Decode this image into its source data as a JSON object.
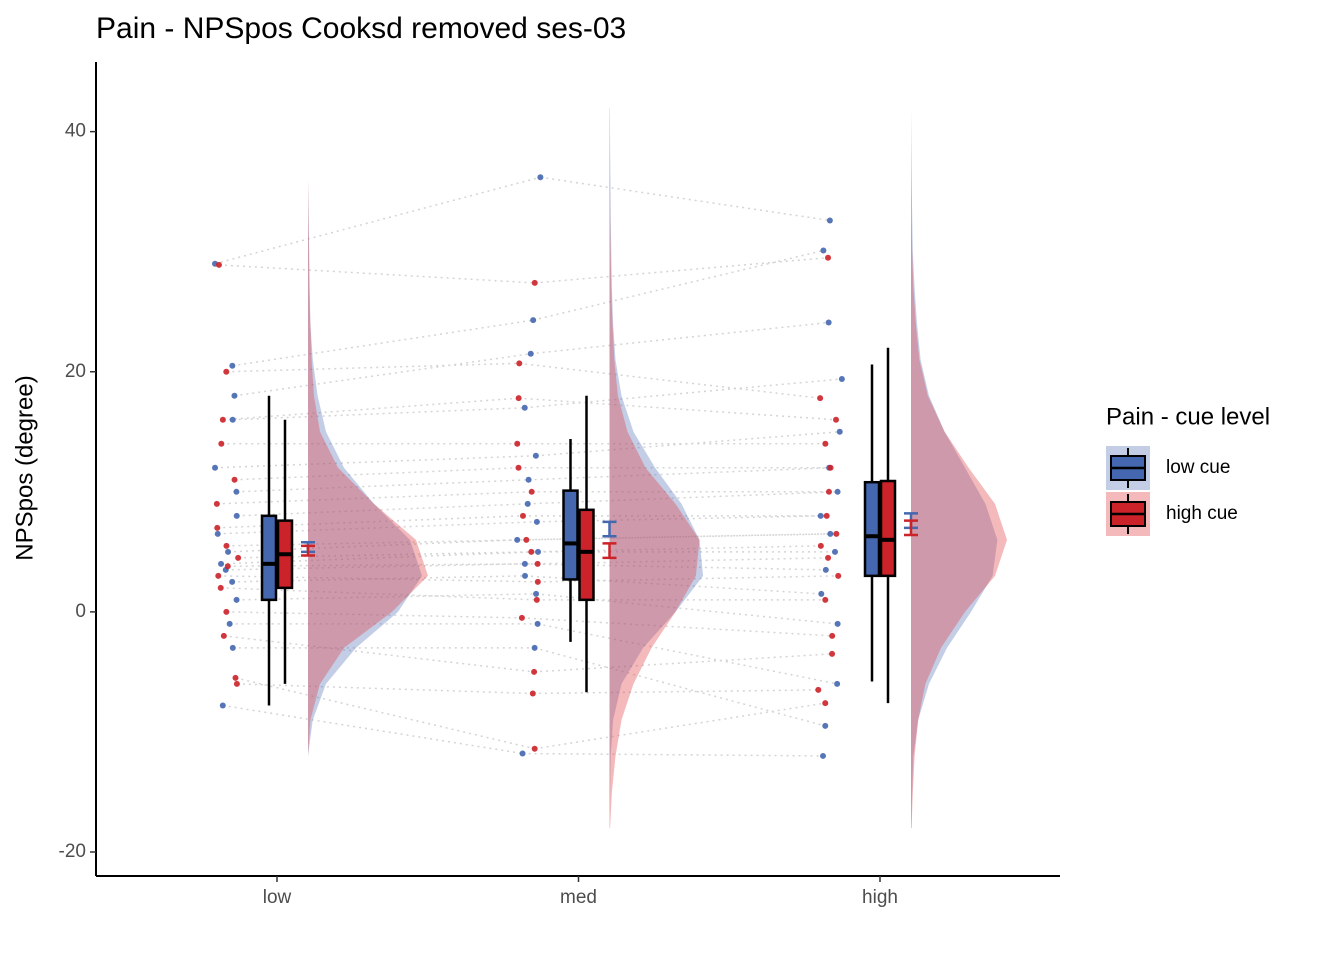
{
  "chart_data": {
    "type": "raincloud",
    "title": "Pain  - NPSpos Cooksd removed  ses-03",
    "y_label": "NPSpos (degree)",
    "legend_title": "Pain  - cue level",
    "legend_position": "right",
    "categories": [
      "low",
      "med",
      "high"
    ],
    "ylim": [
      -22,
      45.8
    ],
    "yticks": [
      -20,
      0,
      20,
      40
    ],
    "density_grid": [
      -18,
      -15,
      -12,
      -9,
      -6,
      -3,
      0,
      3,
      6,
      9,
      12,
      15,
      18,
      21,
      24,
      27,
      30,
      33,
      36,
      39,
      42
    ],
    "series": [
      {
        "name": "low cue",
        "color": "#4467b0",
        "points": [
          [
            29,
            20.5,
            18,
            16,
            12,
            10,
            8,
            6.5,
            5,
            4,
            3.5,
            2.5,
            1,
            -1,
            -3,
            -7.8
          ],
          [
            36.2,
            24.3,
            21.5,
            17,
            13,
            11,
            9,
            7.5,
            6,
            5,
            4,
            3,
            1.5,
            -1,
            -3,
            -11.8
          ],
          [
            32.6,
            30.1,
            24.1,
            19.4,
            15,
            12,
            10,
            8,
            6.5,
            5,
            3.5,
            1.5,
            -1,
            -6,
            -9.5,
            -12
          ]
        ],
        "box": [
          [
            -7.8,
            1,
            4,
            8,
            18
          ],
          [
            -2.5,
            2.7,
            5.7,
            10.1,
            14.4
          ],
          [
            -5.8,
            3,
            6.3,
            10.8,
            20.6
          ]
        ],
        "mean": [
          5.4,
          6.9,
          7.6
        ],
        "error": [
          0.4,
          0.6,
          0.6
        ],
        "density": [
          [
            0,
            0,
            0,
            0.04,
            0.15,
            0.4,
            0.75,
            0.95,
            0.85,
            0.55,
            0.3,
            0.15,
            0.08,
            0.04,
            0.02,
            0.015,
            0.01,
            0.005,
            0,
            0,
            0
          ],
          [
            0,
            0.005,
            0.01,
            0.03,
            0.1,
            0.28,
            0.55,
            0.78,
            0.75,
            0.6,
            0.38,
            0.2,
            0.1,
            0.05,
            0.03,
            0.02,
            0.015,
            0.01,
            0.008,
            0.005,
            0.003
          ],
          [
            0.003,
            0.01,
            0.02,
            0.06,
            0.15,
            0.3,
            0.5,
            0.68,
            0.72,
            0.62,
            0.45,
            0.28,
            0.15,
            0.08,
            0.05,
            0.03,
            0.015,
            0.01,
            0.005,
            0.003,
            0
          ]
        ]
      },
      {
        "name": "high cue",
        "color": "#cc2229",
        "points": [
          [
            28.9,
            20,
            16,
            14,
            11,
            9,
            7,
            5.5,
            4.5,
            3.8,
            3,
            2,
            0,
            -2,
            -6,
            -5.5
          ],
          [
            27.4,
            20.7,
            17.8,
            14,
            12,
            10,
            8,
            6,
            5,
            4,
            2.5,
            1,
            -0.5,
            -5,
            -6.8,
            -11.4
          ],
          [
            29.5,
            17.8,
            16,
            14,
            12,
            10,
            8,
            6.5,
            5.5,
            4.5,
            3,
            1,
            -2,
            -3.5,
            -6.5,
            -7.6
          ]
        ],
        "box": [
          [
            -6,
            2,
            4.8,
            7.6,
            16
          ],
          [
            -6.7,
            1,
            5,
            8.5,
            18
          ],
          [
            -7.6,
            3,
            6,
            10.9,
            22
          ]
        ],
        "mean": [
          5.1,
          5.1,
          7.0
        ],
        "error": [
          0.4,
          0.6,
          0.6
        ],
        "density": [
          [
            0,
            0,
            0,
            0.02,
            0.1,
            0.3,
            0.7,
            1.0,
            0.9,
            0.55,
            0.25,
            0.1,
            0.05,
            0.03,
            0.02,
            0.01,
            0.008,
            0.004,
            0,
            0,
            0
          ],
          [
            0.005,
            0.02,
            0.05,
            0.1,
            0.2,
            0.35,
            0.55,
            0.72,
            0.75,
            0.55,
            0.3,
            0.15,
            0.07,
            0.04,
            0.025,
            0.015,
            0.01,
            0.006,
            0.004,
            0.002,
            0
          ],
          [
            0.005,
            0.015,
            0.03,
            0.06,
            0.12,
            0.25,
            0.45,
            0.7,
            0.8,
            0.7,
            0.48,
            0.28,
            0.14,
            0.07,
            0.04,
            0.02,
            0.01,
            0.005,
            0.003,
            0,
            0
          ]
        ]
      }
    ]
  }
}
